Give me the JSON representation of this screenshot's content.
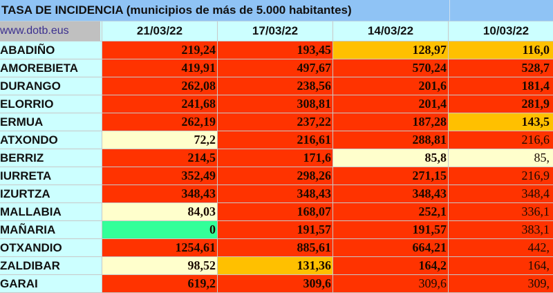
{
  "title": "TASA DE INCIDENCIA  (municipios de más de 5.000 habitantes)",
  "site": "www.dotb.eus",
  "dates": [
    "21/03/22",
    "17/03/22",
    "14/03/22",
    "10/03/22"
  ],
  "colors": {
    "red": "#ff3300",
    "orange": "#ffc000",
    "light_yellow": "#ffffcc",
    "green": "#33ff99"
  },
  "rows": [
    {
      "name": "ABADIÑO",
      "values": [
        "219,24",
        "193,45",
        "128,97",
        "116,0"
      ],
      "colors": [
        "red",
        "red",
        "orange",
        "orange"
      ]
    },
    {
      "name": "AMOREBIETA",
      "values": [
        "419,91",
        "497,67",
        "570,24",
        "528,7"
      ],
      "colors": [
        "red",
        "red",
        "red",
        "red"
      ]
    },
    {
      "name": "DURANGO",
      "values": [
        "262,08",
        "238,56",
        "201,6",
        "181,4"
      ],
      "colors": [
        "red",
        "red",
        "red",
        "red"
      ]
    },
    {
      "name": "ELORRIO",
      "values": [
        "241,68",
        "308,81",
        "201,4",
        "281,9"
      ],
      "colors": [
        "red",
        "red",
        "red",
        "red"
      ]
    },
    {
      "name": "ERMUA",
      "values": [
        "262,19",
        "237,22",
        "187,28",
        "143,5"
      ],
      "colors": [
        "red",
        "red",
        "red",
        "orange"
      ]
    },
    {
      "name": "ATXONDO",
      "values": [
        "72,2",
        "216,61",
        "288,81",
        "216,6"
      ],
      "colors": [
        "ly",
        "red",
        "red",
        "red"
      ]
    },
    {
      "name": "BERRIZ",
      "values": [
        "214,5",
        "171,6",
        "85,8",
        "85,"
      ],
      "colors": [
        "red",
        "red",
        "ly",
        "ly"
      ]
    },
    {
      "name": "IURRETA",
      "values": [
        "352,49",
        "298,26",
        "271,15",
        "216,9"
      ],
      "colors": [
        "red",
        "red",
        "red",
        "red"
      ]
    },
    {
      "name": "IZURTZA",
      "values": [
        "348,43",
        "348,43",
        "348,43",
        "348,4"
      ],
      "colors": [
        "red",
        "red",
        "red",
        "red"
      ]
    },
    {
      "name": "MALLABIA",
      "values": [
        "84,03",
        "168,07",
        "252,1",
        "336,1"
      ],
      "colors": [
        "ly",
        "red",
        "red",
        "red"
      ]
    },
    {
      "name": "MAÑARIA",
      "values": [
        "0",
        "191,57",
        "191,57",
        "383,1"
      ],
      "colors": [
        "green",
        "red",
        "red",
        "red"
      ]
    },
    {
      "name": "OTXANDIO",
      "values": [
        "1254,61",
        "885,61",
        "664,21",
        "442,"
      ],
      "colors": [
        "red",
        "red",
        "red",
        "red"
      ]
    },
    {
      "name": "ZALDIBAR",
      "values": [
        "98,52",
        "131,36",
        "164,2",
        "164,"
      ],
      "colors": [
        "ly",
        "orange",
        "red",
        "red"
      ]
    },
    {
      "name": "GARAI",
      "values": [
        "619,2",
        "309,6",
        "309,6",
        "309,"
      ],
      "colors": [
        "red",
        "red",
        "red",
        "red"
      ]
    }
  ]
}
